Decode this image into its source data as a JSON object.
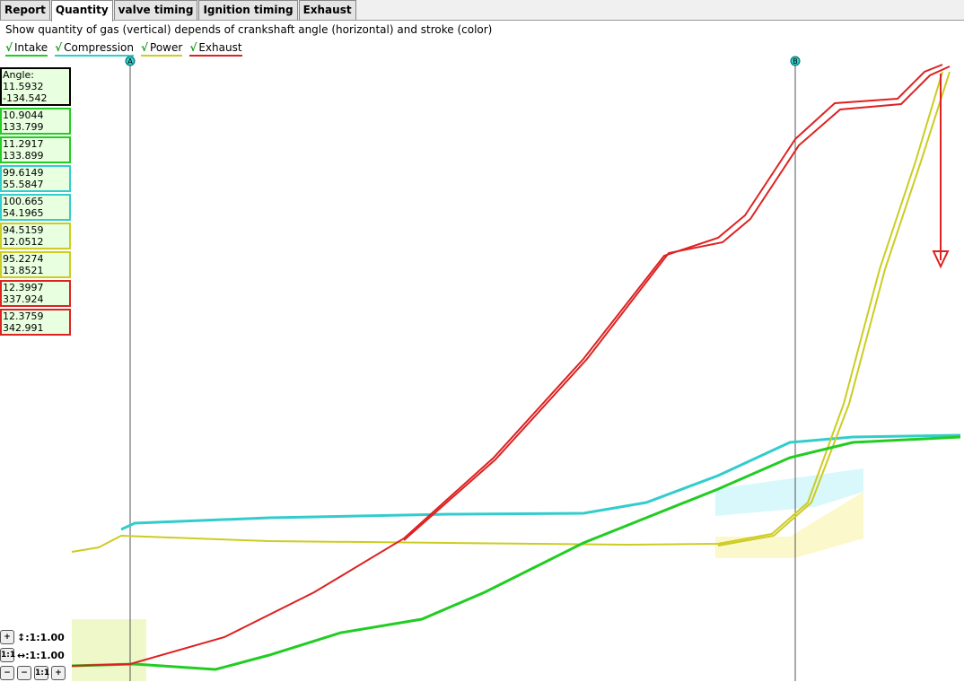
{
  "tabs": [
    "Report",
    "Quantity",
    "valve timing",
    "Ignition timing",
    "Exhaust"
  ],
  "description": "Show quantity of gas (vertical) depends of crankshaft angle (horizontal) and stroke (color)",
  "check_mark": "√",
  "legend": [
    {
      "label": "Intake",
      "color": "#22cc22"
    },
    {
      "label": "Compression",
      "color": "#33cccc"
    },
    {
      "label": "Power",
      "color": "#cccc22"
    },
    {
      "label": "Exhaust",
      "color": "#dd2222"
    }
  ],
  "cursors": [
    "A",
    "B"
  ],
  "readouts": [
    {
      "lines": [
        "Angle:",
        "11.5932",
        "-134.542"
      ],
      "color": "#000000"
    },
    {
      "lines": [
        "10.9044",
        "133.799"
      ],
      "color": "#22cc22"
    },
    {
      "lines": [
        "11.2917",
        "133.899"
      ],
      "color": "#22cc22"
    },
    {
      "lines": [
        "99.6149",
        "55.5847"
      ],
      "color": "#33cccc"
    },
    {
      "lines": [
        "100.665",
        "54.1965"
      ],
      "color": "#33cccc"
    },
    {
      "lines": [
        "94.5159",
        "12.0512"
      ],
      "color": "#cccc22"
    },
    {
      "lines": [
        "95.2274",
        "13.8521"
      ],
      "color": "#cccc22"
    },
    {
      "lines": [
        "12.3997",
        "337.924"
      ],
      "color": "#dd2222"
    },
    {
      "lines": [
        "12.3759",
        "342.991"
      ],
      "color": "#dd2222"
    }
  ],
  "zoom": {
    "vertical": "↕:1:1.00",
    "horizontal": "↔:1:1.00",
    "plus": "+",
    "minus": "−",
    "reset": "1:1"
  }
}
